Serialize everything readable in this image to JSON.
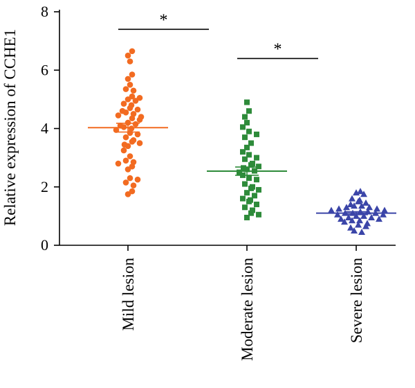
{
  "chart_data": {
    "type": "scatter",
    "title": "",
    "xlabel": "",
    "ylabel": "Relative expression of CCHE1",
    "ylim": [
      0,
      8
    ],
    "yticks": [
      "0",
      "2",
      "4",
      "6",
      "8"
    ],
    "categories": [
      "Mild lesion",
      "Moderate lesion",
      "Severe lesion"
    ],
    "series": [
      {
        "category": "Mild lesion",
        "color": "#F26B21",
        "marker": "circle",
        "mean": 4.03,
        "sem": 0.15,
        "values": [
          6.65,
          6.5,
          6.3,
          5.85,
          5.7,
          5.5,
          5.35,
          5.3,
          5.1,
          5.05,
          5.0,
          4.95,
          4.85,
          4.8,
          4.7,
          4.65,
          4.6,
          4.55,
          4.5,
          4.45,
          4.4,
          4.35,
          4.3,
          4.2,
          4.15,
          4.1,
          4.05,
          4.0,
          3.95,
          3.85,
          3.8,
          3.7,
          3.6,
          3.55,
          3.5,
          3.45,
          3.4,
          3.25,
          3.05,
          2.9,
          2.85,
          2.8,
          2.7,
          2.6,
          2.3,
          2.25,
          2.15,
          2.05,
          1.85,
          1.75
        ]
      },
      {
        "category": "Moderate lesion",
        "color": "#2E8B3A",
        "marker": "square",
        "mean": 2.54,
        "sem": 0.14,
        "values": [
          4.9,
          4.6,
          4.4,
          4.2,
          4.05,
          3.9,
          3.8,
          3.7,
          3.5,
          3.35,
          3.2,
          3.1,
          3.0,
          2.95,
          2.8,
          2.75,
          2.7,
          2.65,
          2.6,
          2.55,
          2.5,
          2.4,
          2.3,
          2.25,
          2.1,
          2.0,
          1.95,
          1.9,
          1.8,
          1.7,
          1.6,
          1.55,
          1.5,
          1.4,
          1.3,
          1.2,
          1.1,
          1.05,
          0.95
        ]
      },
      {
        "category": "Severe lesion",
        "color": "#3B45A8",
        "marker": "triangle",
        "mean": 1.1,
        "sem": 0.05,
        "values": [
          1.85,
          1.8,
          1.75,
          1.6,
          1.55,
          1.5,
          1.45,
          1.4,
          1.35,
          1.35,
          1.3,
          1.3,
          1.25,
          1.25,
          1.2,
          1.2,
          1.15,
          1.15,
          1.1,
          1.1,
          1.1,
          1.05,
          1.05,
          1.0,
          1.0,
          0.95,
          0.95,
          0.9,
          0.9,
          0.85,
          0.85,
          0.8,
          0.75,
          0.7,
          0.65,
          0.6,
          0.5,
          0.45
        ]
      }
    ],
    "significance": [
      {
        "from": 0,
        "to": 1,
        "y": 7.4,
        "label": "*"
      },
      {
        "from": 1,
        "to": 2,
        "y": 6.4,
        "label": "*"
      }
    ]
  }
}
